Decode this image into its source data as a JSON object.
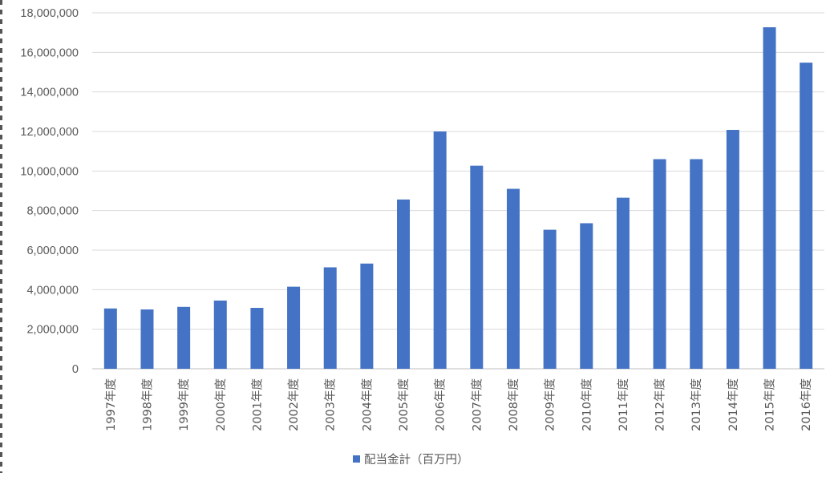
{
  "chart_data": {
    "type": "bar",
    "title": "",
    "xlabel": "",
    "ylabel": "",
    "ylim": [
      0,
      18000000
    ],
    "yticks": [
      "0",
      "2,000,000",
      "4,000,000",
      "6,000,000",
      "8,000,000",
      "10,000,000",
      "12,000,000",
      "14,000,000",
      "16,000,000",
      "18,000,000"
    ],
    "grid": true,
    "legend_position": "bottom",
    "bar_color": "#4472C4",
    "categories": [
      "1997年度",
      "1998年度",
      "1999年度",
      "2000年度",
      "2001年度",
      "2002年度",
      "2003年度",
      "2004年度",
      "2005年度",
      "2006年度",
      "2007年度",
      "2008年度",
      "2009年度",
      "2010年度",
      "2011年度",
      "2012年度",
      "2013年度",
      "2014年度",
      "2015年度",
      "2016年度"
    ],
    "series": [
      {
        "name": "配当金計（百万円）",
        "values": [
          3050000,
          3000000,
          3130000,
          3450000,
          3080000,
          4150000,
          5130000,
          5320000,
          8560000,
          12000000,
          10270000,
          9100000,
          7030000,
          7360000,
          8650000,
          10600000,
          10600000,
          12080000,
          17270000,
          15480000
        ]
      }
    ]
  }
}
